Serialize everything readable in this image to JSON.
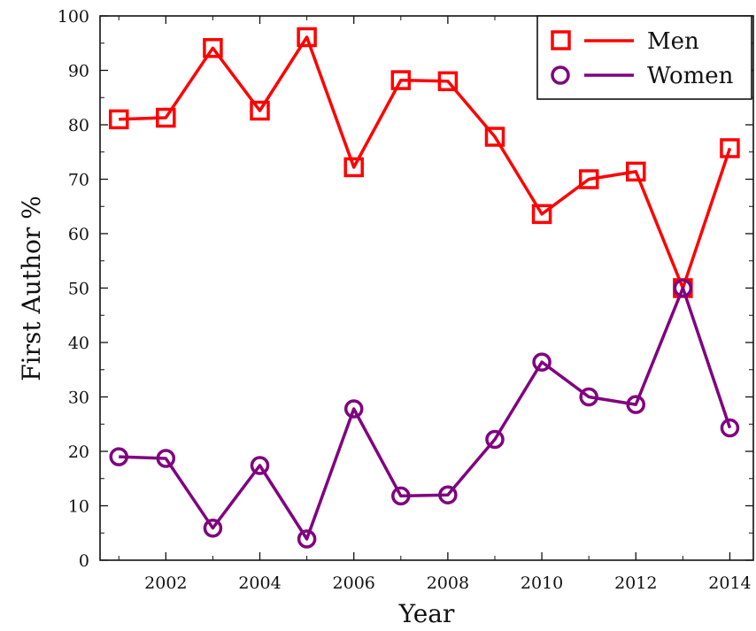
{
  "chart_data": {
    "type": "line",
    "xlabel": "Year",
    "ylabel": "First Author %",
    "xlim": [
      2000.6,
      2014.5
    ],
    "ylim": [
      0,
      100
    ],
    "xticks": [
      2002,
      2004,
      2006,
      2008,
      2010,
      2012,
      2014
    ],
    "yticks": [
      0,
      10,
      20,
      30,
      40,
      50,
      60,
      70,
      80,
      90,
      100
    ],
    "grid": false,
    "legend_position": "top-right",
    "x": [
      2001,
      2002,
      2003,
      2004,
      2005,
      2006,
      2007,
      2008,
      2009,
      2010,
      2011,
      2012,
      2013,
      2014
    ],
    "series": [
      {
        "name": "Men",
        "marker": "square",
        "color": "#ff0000",
        "values": [
          81.0,
          81.3,
          94.1,
          82.6,
          96.1,
          72.2,
          88.2,
          88.0,
          77.8,
          63.6,
          70.0,
          71.4,
          50.0,
          75.7
        ]
      },
      {
        "name": "Women",
        "marker": "circle",
        "color": "#800080",
        "values": [
          19.0,
          18.7,
          5.9,
          17.4,
          3.9,
          27.8,
          11.8,
          12.0,
          22.2,
          36.4,
          30.0,
          28.6,
          50.0,
          24.3
        ]
      }
    ]
  }
}
